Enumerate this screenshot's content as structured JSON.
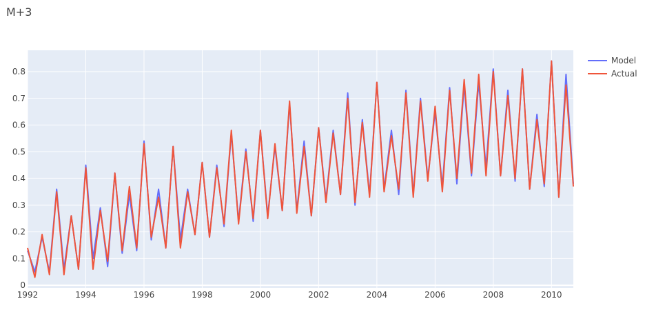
{
  "chart_data": {
    "type": "line",
    "title": "M+3",
    "xlabel": "",
    "ylabel": "",
    "x_start_year": 1992.0,
    "x_step_years": 0.25,
    "xlim": [
      1992,
      2010.75
    ],
    "ylim": [
      -0.01,
      0.88
    ],
    "x_ticks": [
      "1992",
      "1994",
      "1996",
      "1998",
      "2000",
      "2002",
      "2004",
      "2006",
      "2008",
      "2010"
    ],
    "y_ticks": [
      "0",
      "0.1",
      "0.2",
      "0.3",
      "0.4",
      "0.5",
      "0.6",
      "0.7",
      "0.8"
    ],
    "grid": true,
    "legend_position": "top-right",
    "series": [
      {
        "name": "Model",
        "color": "#636efa",
        "values": [
          0.13,
          0.05,
          0.18,
          0.05,
          0.36,
          0.06,
          0.26,
          0.06,
          0.45,
          0.1,
          0.29,
          0.07,
          0.42,
          0.12,
          0.34,
          0.13,
          0.54,
          0.17,
          0.36,
          0.14,
          0.52,
          0.17,
          0.36,
          0.19,
          0.46,
          0.18,
          0.45,
          0.22,
          0.57,
          0.24,
          0.51,
          0.24,
          0.58,
          0.26,
          0.52,
          0.28,
          0.68,
          0.28,
          0.54,
          0.26,
          0.59,
          0.32,
          0.58,
          0.34,
          0.72,
          0.3,
          0.62,
          0.34,
          0.76,
          0.36,
          0.58,
          0.34,
          0.73,
          0.34,
          0.7,
          0.4,
          0.65,
          0.37,
          0.74,
          0.38,
          0.75,
          0.41,
          0.76,
          0.44,
          0.81,
          0.41,
          0.73,
          0.39,
          0.81,
          0.36,
          0.64,
          0.37,
          0.84,
          0.33,
          0.79,
          0.38
        ]
      },
      {
        "name": "Actual",
        "color": "#ef553b",
        "values": [
          0.14,
          0.03,
          0.19,
          0.04,
          0.35,
          0.04,
          0.26,
          0.06,
          0.44,
          0.06,
          0.28,
          0.09,
          0.42,
          0.13,
          0.37,
          0.14,
          0.53,
          0.18,
          0.33,
          0.14,
          0.52,
          0.14,
          0.35,
          0.19,
          0.46,
          0.18,
          0.44,
          0.23,
          0.58,
          0.23,
          0.5,
          0.25,
          0.58,
          0.25,
          0.53,
          0.28,
          0.69,
          0.27,
          0.52,
          0.26,
          0.59,
          0.31,
          0.57,
          0.34,
          0.7,
          0.31,
          0.61,
          0.33,
          0.76,
          0.35,
          0.56,
          0.36,
          0.72,
          0.33,
          0.69,
          0.39,
          0.67,
          0.35,
          0.73,
          0.4,
          0.77,
          0.42,
          0.79,
          0.41,
          0.8,
          0.41,
          0.71,
          0.4,
          0.81,
          0.36,
          0.62,
          0.38,
          0.84,
          0.33,
          0.75,
          0.37
        ]
      }
    ]
  }
}
